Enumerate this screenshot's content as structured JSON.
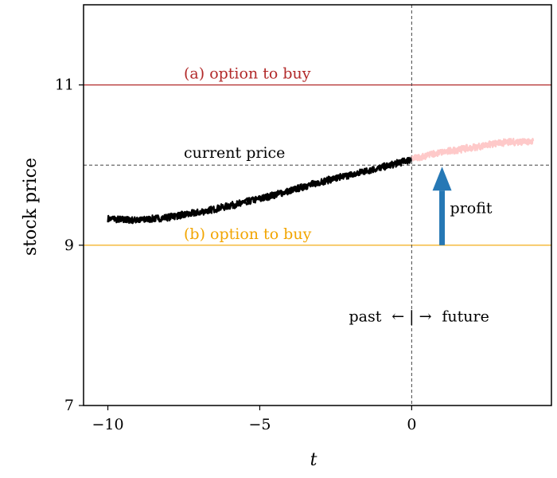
{
  "chart_data": {
    "type": "line",
    "title": "",
    "xlabel": "t",
    "ylabel": "stock price",
    "xlim": [
      -10.8,
      4.6
    ],
    "ylim": [
      7,
      12
    ],
    "xticks": [
      -10,
      -5,
      0
    ],
    "xtick_labels": [
      "−10",
      "−5",
      "0"
    ],
    "yticks": [
      7,
      9,
      11
    ],
    "ytick_labels": [
      "7",
      "9",
      "11"
    ],
    "grid": false,
    "series": [
      {
        "key": "past",
        "color": "#000000",
        "points": [
          [
            -10,
            9.33
          ],
          [
            -9,
            9.31
          ],
          [
            -8,
            9.35
          ],
          [
            -7,
            9.41
          ],
          [
            -6,
            9.49
          ],
          [
            -5,
            9.58
          ],
          [
            -4,
            9.68
          ],
          [
            -3,
            9.79
          ],
          [
            -2,
            9.88
          ],
          [
            -1,
            9.97
          ],
          [
            0,
            10.07
          ]
        ]
      },
      {
        "key": "future",
        "color": "#fec9c9",
        "points": [
          [
            0,
            10.08
          ],
          [
            1,
            10.16
          ],
          [
            2,
            10.22
          ],
          [
            3,
            10.28
          ],
          [
            4,
            10.3
          ]
        ]
      }
    ],
    "reference_lines": {
      "option_a": {
        "y": 11,
        "label": "(a) option to buy",
        "color": "#b22a2a"
      },
      "option_b": {
        "y": 9,
        "label": "(b) option to buy",
        "color": "#f2a500"
      },
      "current_price": {
        "y": 10,
        "label": "current price",
        "color": "#444444"
      },
      "now": {
        "x": 0,
        "color": "#444444"
      }
    },
    "profit_arrow": {
      "x": 1,
      "from": 9,
      "to": 9.98,
      "label": "profit",
      "color": "#2678b5"
    },
    "time_annotation": {
      "past": "past",
      "arrows": "← | →",
      "future": "future",
      "x": 0,
      "y": 8.05
    }
  }
}
